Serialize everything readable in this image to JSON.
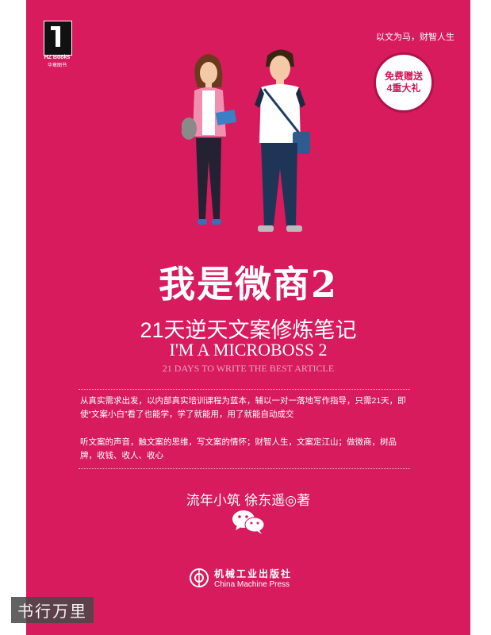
{
  "publisher_logo": {
    "label": "HZ Books",
    "sublabel": "华章图书"
  },
  "tagline": "以文为马，财智人生",
  "gift_badge": {
    "line1": "免费赠送",
    "line2": "4重大礼"
  },
  "title_cn": "我是微商2",
  "subtitle_cn": "21天逆天文案修炼笔记",
  "title_en": "I'M A MICROBOSS 2",
  "subtitle_en": "21 DAYS TO WRITE THE BEST ARTICLE",
  "description": [
    "从真实需求出发，以内部真实培训课程为蓝本，辅以一对一落地写作指导，只需21天，即使“文案小白”看了也能学，学了就能用，用了就能自动成交",
    "听文案的声音，触文案的思维，写文案的情怀；财智人生，文案定江山；做微商，树品牌，收钱、收人、收心"
  ],
  "authors": "流年小筑  徐东遥◎著",
  "publisher": {
    "name_cn": "机械工业出版社",
    "name_en": "China Machine Press"
  },
  "watermark": "书行万里",
  "colors": {
    "cover_background": "#d81b5c",
    "badge_text": "#d11656"
  }
}
